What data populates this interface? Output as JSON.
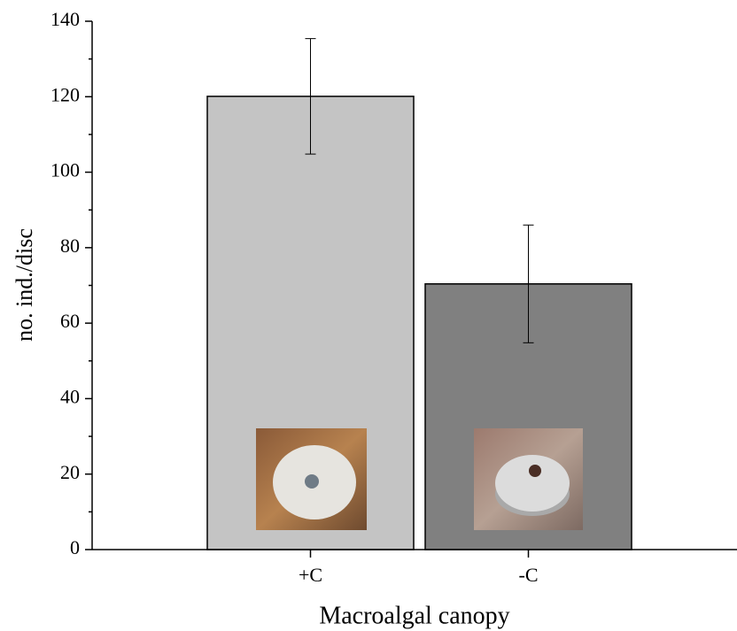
{
  "chart_data": {
    "type": "bar",
    "xlabel": "Macroalgal canopy",
    "ylabel": "no. ind./disc",
    "categories": [
      "+C",
      "-C"
    ],
    "values": [
      120.1,
      70.4
    ],
    "errors": [
      15.3,
      15.6
    ],
    "colors": [
      "#c4c4c4",
      "#808080"
    ],
    "ylim": [
      0,
      140
    ],
    "yticks": [
      0,
      20,
      40,
      60,
      80,
      100,
      120,
      140
    ]
  }
}
